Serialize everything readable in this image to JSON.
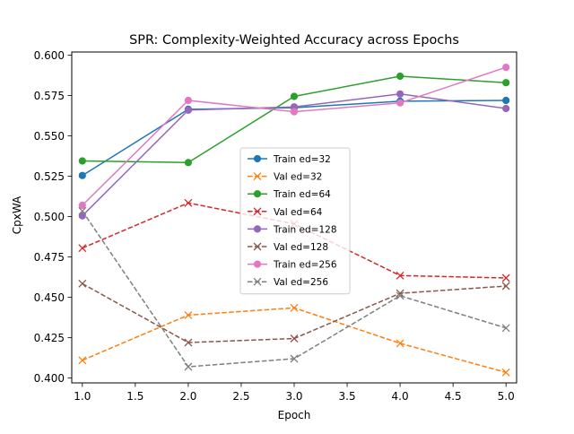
{
  "chart_data": {
    "type": "line",
    "title": "SPR: Complexity-Weighted Accuracy across Epochs",
    "xlabel": "Epoch",
    "ylabel": "CpxWA",
    "xlim": [
      0.9,
      5.1
    ],
    "ylim": [
      0.397,
      0.602
    ],
    "xticks": [
      1.0,
      1.5,
      2.0,
      2.5,
      3.0,
      3.5,
      4.0,
      4.5,
      5.0
    ],
    "xtick_labels": [
      "1.0",
      "1.5",
      "2.0",
      "2.5",
      "3.0",
      "3.5",
      "4.0",
      "4.5",
      "5.0"
    ],
    "yticks": [
      0.4,
      0.425,
      0.45,
      0.475,
      0.5,
      0.525,
      0.55,
      0.575,
      0.6
    ],
    "ytick_labels": [
      "0.400",
      "0.425",
      "0.450",
      "0.475",
      "0.500",
      "0.525",
      "0.550",
      "0.575",
      "0.600"
    ],
    "grid": false,
    "legend_position": "center",
    "x": [
      1,
      2,
      3,
      4,
      5
    ],
    "series": [
      {
        "name": "Train ed=32",
        "color": "#1f77b4",
        "style": "solid",
        "marker": "circle",
        "values": [
          0.5255,
          0.5665,
          0.5675,
          0.5715,
          0.572
        ]
      },
      {
        "name": "Val ed=32",
        "color": "#ff7f0e",
        "style": "dashed",
        "marker": "x",
        "values": [
          0.411,
          0.439,
          0.4435,
          0.4215,
          0.4035
        ]
      },
      {
        "name": "Train ed=64",
        "color": "#2ca02c",
        "style": "solid",
        "marker": "circle",
        "values": [
          0.5345,
          0.5335,
          0.5745,
          0.587,
          0.583
        ]
      },
      {
        "name": "Val ed=64",
        "color": "#d62728",
        "style": "dashed",
        "marker": "x",
        "values": [
          0.4805,
          0.5085,
          0.4955,
          0.4635,
          0.462
        ]
      },
      {
        "name": "Train ed=128",
        "color": "#9467bd",
        "style": "solid",
        "marker": "circle",
        "values": [
          0.5005,
          0.566,
          0.568,
          0.576,
          0.567
        ]
      },
      {
        "name": "Val ed=128",
        "color": "#8c564b",
        "style": "dashed",
        "marker": "x",
        "values": [
          0.4585,
          0.422,
          0.4245,
          0.4525,
          0.457
        ]
      },
      {
        "name": "Train ed=256",
        "color": "#e377c2",
        "style": "solid",
        "marker": "circle",
        "values": [
          0.507,
          0.572,
          0.565,
          0.5705,
          0.5925
        ]
      },
      {
        "name": "Val ed=256",
        "color": "#7f7f7f",
        "style": "dashed",
        "marker": "x",
        "values": [
          0.5035,
          0.407,
          0.412,
          0.451,
          0.431
        ]
      }
    ]
  }
}
